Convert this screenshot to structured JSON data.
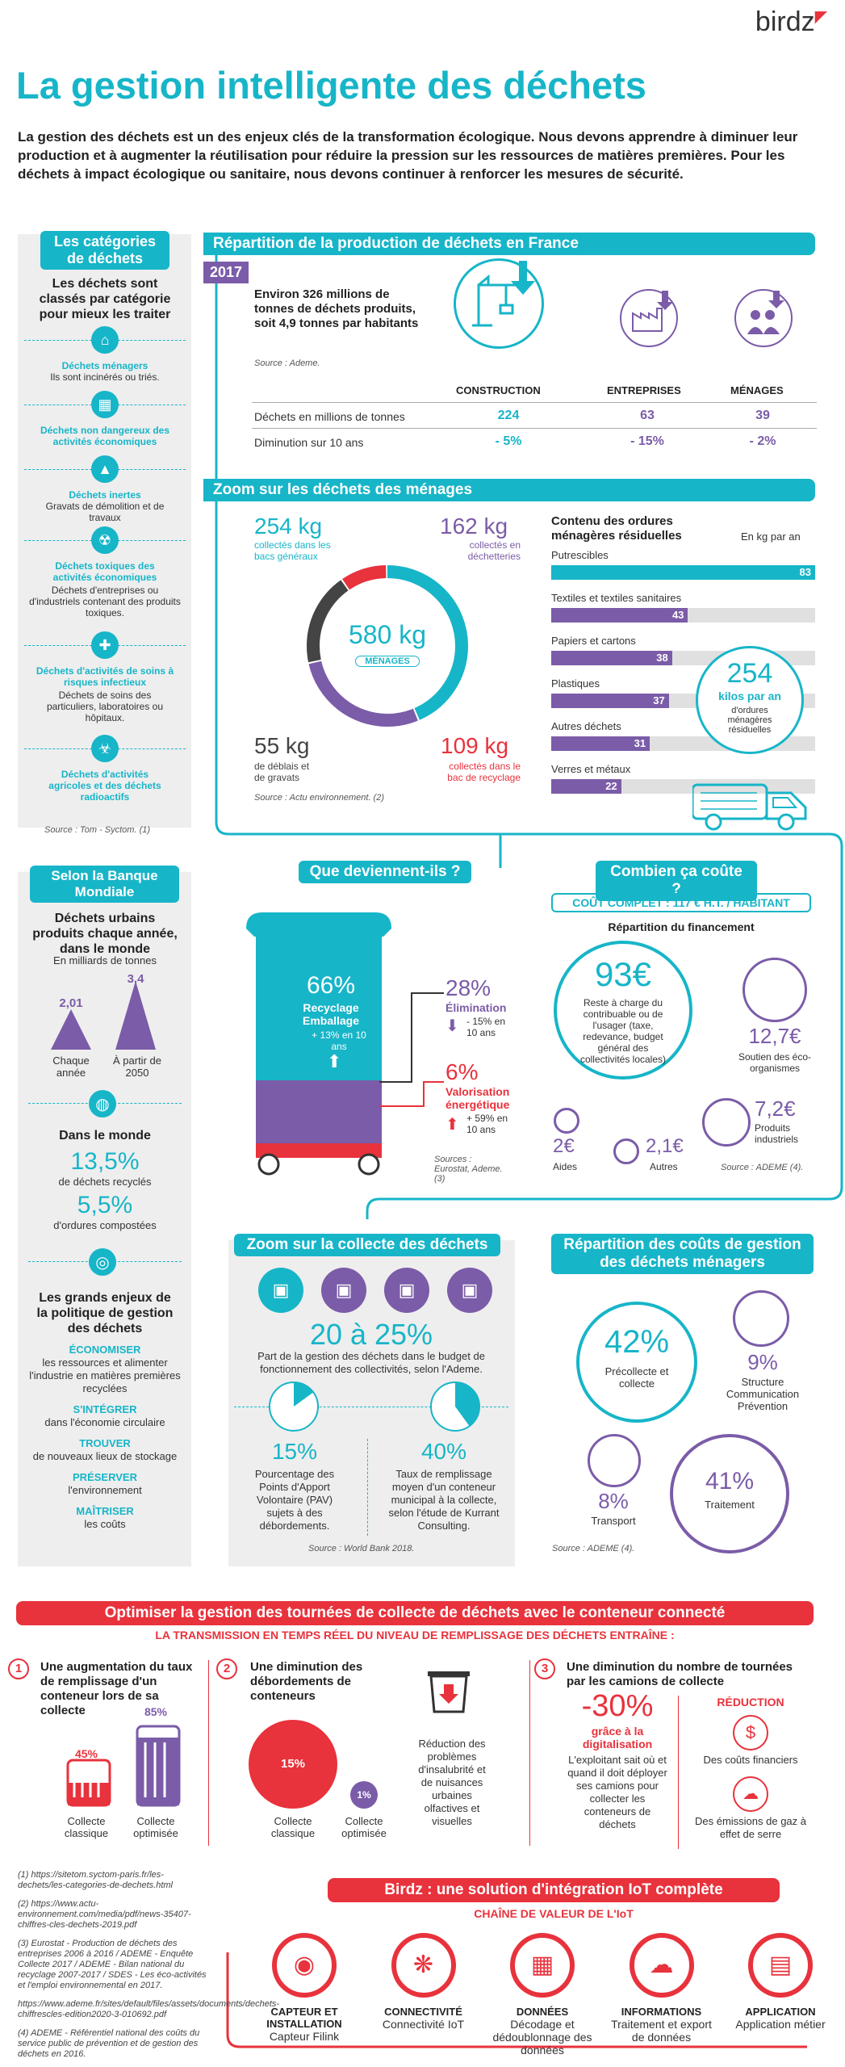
{
  "brand": {
    "name": "birdz"
  },
  "title": "La gestion intelligente des déchets",
  "intro": "La gestion des déchets est un des enjeux clés de la transformation écologique. Nous devons apprendre à diminuer leur production et à augmenter la réutilisation pour réduire la pression sur les ressources de matières premières. Pour les déchets à impact écologique ou sanitaire, nous devons continuer à renforcer les mesures de sécurité.",
  "categories": {
    "header": "Les catégories de déchets",
    "lead": "Les déchets sont classés par catégorie pour mieux les traiter",
    "items": [
      {
        "title": "Déchets ménagers",
        "desc": "Ils sont incinérés ou triés."
      },
      {
        "title": "Déchets non dangereux des activités économiques",
        "desc": ""
      },
      {
        "title": "Déchets inertes",
        "desc": "Gravats de démolition et de travaux"
      },
      {
        "title": "Déchets toxiques des activités économiques",
        "desc": "Déchets d'entreprises ou d'industriels contenant des produits toxiques."
      },
      {
        "title": "Déchets d'activités de soins à risques infectieux",
        "desc": "Déchets de soins des particuliers, laboratoires ou hôpitaux."
      },
      {
        "title": "Déchets d'activités agricoles et des déchets radioactifs",
        "desc": ""
      }
    ],
    "source": "Source : Tom - Syctom. (1)"
  },
  "repartition": {
    "header": "Répartition de la production de déchets en France",
    "year": "2017",
    "summary": "Environ 326 millions de tonnes de déchets produits, soit 4,9 tonnes par habitants",
    "source": "Source : Ademe.",
    "columns": [
      "CONSTRUCTION",
      "ENTREPRISES",
      "MÉNAGES"
    ],
    "rows": [
      {
        "label": "Déchets en millions de tonnes",
        "values": [
          "224",
          "63",
          "39"
        ]
      },
      {
        "label": "Diminution sur 10 ans",
        "values": [
          "- 5%",
          "- 15%",
          "- 2%"
        ]
      }
    ]
  },
  "zoom_menages": {
    "header": "Zoom sur les déchets des ménages",
    "total_value": "580 kg",
    "total_label": "MÉNAGES",
    "segments": [
      {
        "value": "254 kg",
        "label": "collectés dans les bacs généraux"
      },
      {
        "value": "162 kg",
        "label": "collectés en déchetteries"
      },
      {
        "value": "55 kg",
        "label": "de déblais et de gravats"
      },
      {
        "value": "109 kg",
        "label": "collectés dans le bac de recyclage"
      }
    ],
    "source": "Source : Actu environnement. (2)",
    "omr_title": "Contenu des ordures ménagères résiduelles",
    "omr_unit": "En kg par an",
    "omr_total": "254",
    "omr_total_unit": "kilos par an",
    "omr_total_desc": "d'ordures ménagères résiduelles",
    "colors": {
      "teal": "#17b5c8",
      "purple": "#7b5ca8",
      "red": "#e8323c",
      "dark": "#444444"
    }
  },
  "chart_data": {
    "type": "bar",
    "title": "Contenu des ordures ménagères résiduelles",
    "ylabel": "En kg par an",
    "categories": [
      "Putrescibles",
      "Textiles et textiles sanitaires",
      "Papiers et cartons",
      "Plastiques",
      "Autres déchets",
      "Verres et métaux"
    ],
    "values": [
      83,
      43,
      38,
      37,
      31,
      22
    ],
    "xlim": [
      0,
      83
    ]
  },
  "banque": {
    "header": "Selon la Banque Mondiale",
    "urban_title": "Déchets urbains produits chaque année, dans le monde",
    "urban_unit": "En milliards de tonnes",
    "now_value": "2,01",
    "now_label": "Chaque année",
    "future_value": "3,4",
    "future_label": "À partir de 2050",
    "world_title": "Dans le monde",
    "recycled_value": "13,5%",
    "recycled_label": "de déchets recyclés",
    "compost_value": "5,5%",
    "compost_label": "d'ordures compostées",
    "enjeux_title": "Les grands enjeux de la politique de gestion des déchets",
    "enjeux": [
      {
        "k": "ÉCONOMISER",
        "v": "les ressources et alimenter l'industrie en matières premières recyclées"
      },
      {
        "k": "S'INTÉGRER",
        "v": "dans l'économie circulaire"
      },
      {
        "k": "TROUVER",
        "v": "de nouveaux lieux de stockage"
      },
      {
        "k": "PRÉSERVER",
        "v": "l'environnement"
      },
      {
        "k": "MAÎTRISER",
        "v": "les coûts"
      }
    ]
  },
  "devenir": {
    "header": "Que deviennent-ils ?",
    "recycle_value": "66%",
    "recycle_label": "Recyclage Emballage",
    "recycle_change": "+ 13% en 10 ans",
    "elim_value": "28%",
    "elim_label": "Élimination",
    "elim_change": "- 15% en 10 ans",
    "valo_value": "6%",
    "valo_label": "Valorisation énergétique",
    "valo_change": "+ 59% en 10 ans",
    "source": "Sources : Eurostat, Ademe. (3)"
  },
  "cout": {
    "header": "Combien ça coûte ?",
    "complet": "COÛT COMPLET : 117 € H.T. / HABITANT",
    "financing_title": "Répartition du financement",
    "main_value": "93€",
    "main_label": "Reste à charge du contribuable ou de l'usager (taxe, redevance, budget général des collectivités locales)",
    "eco_value": "12,7€",
    "eco_label": "Soutien des éco-organismes",
    "prod_value": "7,2€",
    "prod_label": "Produits industriels",
    "aides_value": "2€",
    "aides_label": "Aides",
    "autres_value": "2,1€",
    "autres_label": "Autres",
    "source": "Source : ADEME (4)."
  },
  "collecte": {
    "header": "Zoom sur la collecte des déchets",
    "range": "20 à 25%",
    "range_label": "Part de la gestion des déchets dans le budget de fonctionnement des collectivités, selon l'Ademe.",
    "pav_value": "15%",
    "pav_label": "Pourcentage des Points d'Apport Volontaire (PAV) sujets à des débordements.",
    "fill_value": "40%",
    "fill_label": "Taux de remplissage moyen d'un conteneur municipal à la collecte, selon l'étude de Kurrant Consulting.",
    "pav_fraction": 0.15,
    "fill_fraction": 0.4,
    "source": "Source : World Bank 2018."
  },
  "repartition_couts": {
    "header": "Répartition des coûts de gestion des déchets ménagers",
    "items": [
      {
        "value": "42%",
        "label": "Précollecte et collecte"
      },
      {
        "value": "9%",
        "label": "Structure Communication Prévention"
      },
      {
        "value": "8%",
        "label": "Transport"
      },
      {
        "value": "41%",
        "label": "Traitement"
      }
    ],
    "source": "Source : ADEME (4)."
  },
  "optim": {
    "header": "Optimiser la gestion des tournées de collecte de déchets avec le conteneur connecté",
    "sub": "LA TRANSMISSION EN TEMPS RÉEL DU NIVEAU DE REMPLISSAGE DES DÉCHETS ENTRAÎNE :",
    "b1_num": "1",
    "b1_title": "Une augmentation du taux de remplissage d'un conteneur lors de sa collecte",
    "b1_a_value": "45%",
    "b1_a_label": "Collecte classique",
    "b1_b_value": "85%",
    "b1_b_label": "Collecte optimisée",
    "b2_num": "2",
    "b2_title": "Une diminution des débordements de conteneurs",
    "b2_a_value": "15%",
    "b2_a_label": "Collecte classique",
    "b2_b_value": "1%",
    "b2_b_label": "Collecte optimisée",
    "b2_note": "Réduction des problèmes d'insalubrité et de nuisances urbaines olfactives et visuelles",
    "b3_num": "3",
    "b3_title": "Une diminution du nombre de tournées par les camions de collecte",
    "b3_value": "-30%",
    "b3_value_label": "grâce à la digitalisation",
    "b3_desc": "L'exploitant sait où et quand il doit déployer ses camions pour collecter les conteneurs de déchets",
    "b3_red_title": "RÉDUCTION",
    "b3_r1": "Des coûts financiers",
    "b3_r2": "Des émissions de gaz à effet de serre"
  },
  "footnotes": [
    "(1) https://sitetom.syctom-paris.fr/les-dechets/les-categories-de-dechets.html",
    "(2) https://www.actu-environnement.com/media/pdf/news-35407-chiffres-cles-dechets-2019.pdf",
    "(3) Eurostat - Production de déchets des entreprises 2006 à 2016 / ADEME - Enquête Collecte 2017 / ADEME - Bilan national du recyclage 2007-2017 / SDES - Les éco-activités et l'emploi environnemental en 2017.",
    "https://www.ademe.fr/sites/default/files/assets/documents/dechets-chiffrescles-edition2020-3-010692.pdf",
    "(4) ADEME - Référentiel national des coûts du service public de prévention et de gestion des déchets en 2016."
  ],
  "iot": {
    "header": "Birdz : une solution d'intégration IoT complète",
    "sub": "CHAÎNE DE VALEUR DE L'IoT",
    "steps": [
      {
        "k": "CAPTEUR ET INSTALLATION",
        "v": "Capteur Filink"
      },
      {
        "k": "CONNECTIVITÉ",
        "v": "Connectivité IoT"
      },
      {
        "k": "DONNÉES",
        "v": "Décodage et dédoublonnage des données"
      },
      {
        "k": "INFORMATIONS",
        "v": "Traitement et export de données"
      },
      {
        "k": "APPLICATION",
        "v": "Application métier"
      }
    ]
  }
}
